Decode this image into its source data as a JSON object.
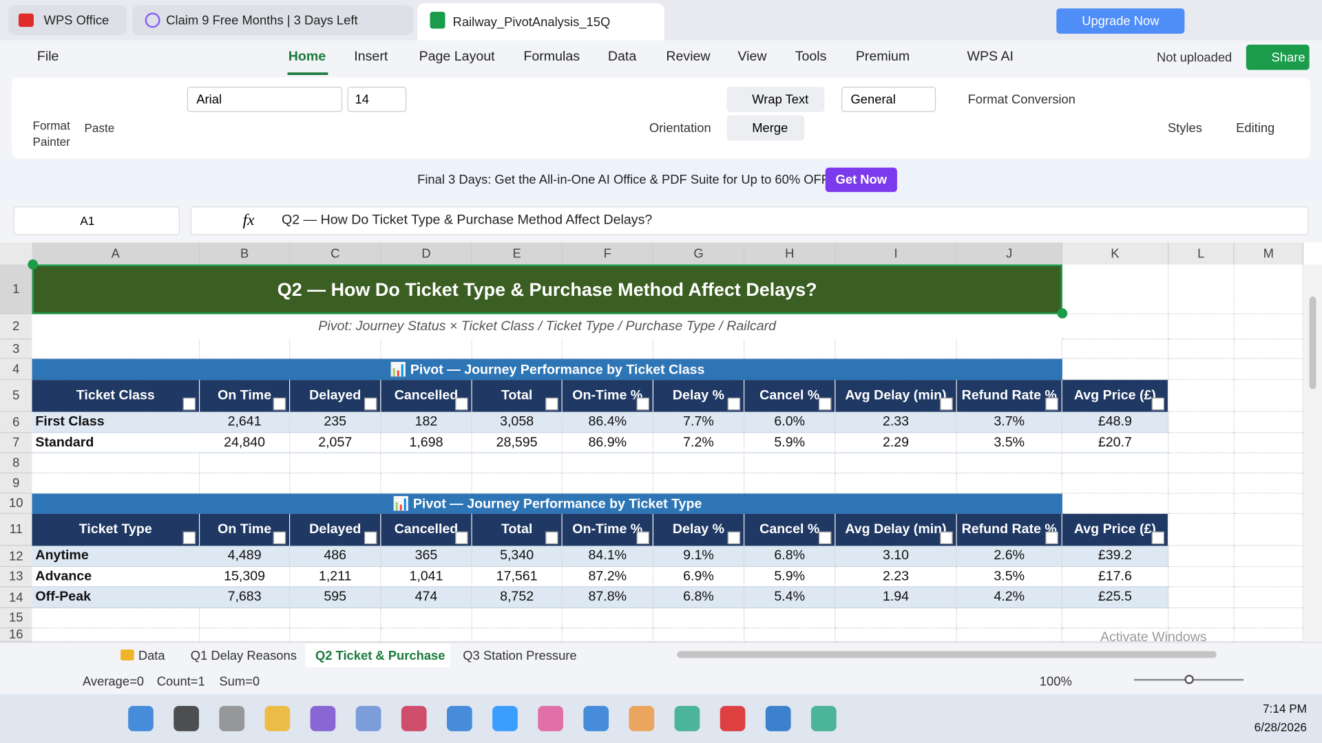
{
  "window_tabs": [
    "WPS Office",
    "Claim 9 Free Months | 3 Days Left",
    "Railway_PivotAnalysis_15Q"
  ],
  "upgrade": "Upgrade Now",
  "menu": [
    "File",
    "Home",
    "Insert",
    "Page Layout",
    "Formulas",
    "Data",
    "Review",
    "View",
    "Tools",
    "Premium",
    "WPS AI"
  ],
  "not_uploaded": "Not uploaded",
  "share": "Share",
  "ribbon": {
    "format_painter": "Format Painter",
    "paste": "Paste",
    "font": "Arial",
    "size": "14",
    "wrap": "Wrap Text",
    "orientation": "Orientation",
    "merge": "Merge",
    "number_format": "General",
    "format_conversion": "Format Conversion",
    "styles": "Styles",
    "editing": "Editing"
  },
  "banner": {
    "text": "Final 3 Days: Get the All-in-One AI Office & PDF Suite for Up to 60% OFF!",
    "button": "Get Now"
  },
  "formula_bar": {
    "cell": "A1",
    "fx": "fx",
    "content": "Q2 — How Do Ticket Type & Purchase Method Affect Delays?"
  },
  "columns": [
    "A",
    "B",
    "C",
    "D",
    "E",
    "F",
    "G",
    "H",
    "I",
    "J",
    "K",
    "L",
    "M"
  ],
  "rows": [
    1,
    2,
    3,
    4,
    5,
    6,
    7,
    8,
    9,
    10,
    11,
    12,
    13,
    14,
    15,
    16
  ],
  "sheet": {
    "title": "Q2 — How Do Ticket Type & Purchase Method Affect Delays?",
    "subtitle": "Pivot: Journey Status × Ticket Class / Ticket Type / Purchase Type / Railcard",
    "tables": [
      {
        "heading": "📊 Pivot — Journey Performance by Ticket Class",
        "headers": [
          "Ticket Class",
          "On Time",
          "Delayed",
          "Cancelled",
          "Total",
          "On-Time %",
          "Delay %",
          "Cancel %",
          "Avg Delay (min)",
          "Refund Rate %",
          "Avg Price (£)"
        ],
        "rows": [
          [
            "First Class",
            "2,641",
            "235",
            "182",
            "3,058",
            "86.4%",
            "7.7%",
            "6.0%",
            "2.33",
            "3.7%",
            "£48.9"
          ],
          [
            "Standard",
            "24,840",
            "2,057",
            "1,698",
            "28,595",
            "86.9%",
            "7.2%",
            "5.9%",
            "2.29",
            "3.5%",
            "£20.7"
          ]
        ]
      },
      {
        "heading": "📊 Pivot — Journey Performance by Ticket Type",
        "headers": [
          "Ticket Type",
          "On Time",
          "Delayed",
          "Cancelled",
          "Total",
          "On-Time %",
          "Delay %",
          "Cancel %",
          "Avg Delay (min)",
          "Refund Rate %",
          "Avg Price (£)"
        ],
        "rows": [
          [
            "Anytime",
            "4,489",
            "486",
            "365",
            "5,340",
            "84.1%",
            "9.1%",
            "6.8%",
            "3.10",
            "2.6%",
            "£39.2"
          ],
          [
            "Advance",
            "15,309",
            "1,211",
            "1,041",
            "17,561",
            "87.2%",
            "6.9%",
            "5.9%",
            "2.23",
            "3.5%",
            "£17.6"
          ],
          [
            "Off-Peak",
            "7,683",
            "595",
            "474",
            "8,752",
            "87.8%",
            "6.8%",
            "5.4%",
            "1.94",
            "4.2%",
            "£25.5"
          ]
        ]
      }
    ]
  },
  "sheet_tabs": [
    "Data",
    "Q1 Delay Reasons",
    "Q2 Ticket & Purchase",
    "Q3 Station Pressure"
  ],
  "status": {
    "average": "Average=0",
    "count": "Count=1",
    "sum": "Sum=0",
    "zoom": "100%"
  },
  "watermark": "Activate Windows",
  "taskbar": {
    "time": "7:14 PM",
    "date": "6/28/2026"
  }
}
